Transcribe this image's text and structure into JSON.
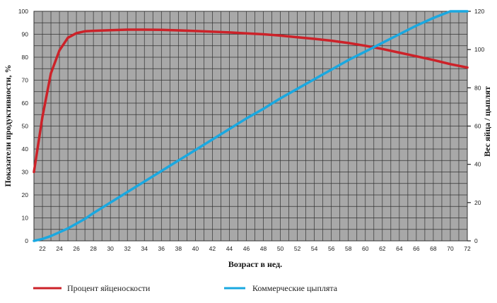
{
  "chart_data": {
    "type": "line",
    "xlabel": "Возраст в нед.",
    "ylabel_left": "Показатели продуктивности, %",
    "ylabel_right": "Вес яйца / цыплят",
    "xlim": [
      21,
      72
    ],
    "ylim_left": [
      0,
      100
    ],
    "ylim_right": [
      0,
      120
    ],
    "x_ticks": [
      22,
      24,
      26,
      28,
      30,
      32,
      34,
      36,
      38,
      40,
      42,
      44,
      46,
      48,
      50,
      52,
      54,
      56,
      58,
      60,
      62,
      64,
      66,
      68,
      70,
      72
    ],
    "y_ticks_left": [
      0,
      10,
      20,
      30,
      40,
      50,
      60,
      70,
      80,
      90,
      100
    ],
    "y_ticks_right": [
      0,
      20,
      40,
      60,
      80,
      100,
      120
    ],
    "grid": true,
    "background": "#a8a8a8",
    "legend_position": "bottom",
    "series": [
      {
        "name": "Процент яйценоскости",
        "axis": "left",
        "color": "#cc2229",
        "x": [
          21,
          22,
          23,
          24,
          25,
          26,
          27,
          28,
          30,
          32,
          34,
          36,
          38,
          40,
          42,
          44,
          46,
          48,
          50,
          52,
          54,
          56,
          58,
          60,
          62,
          64,
          66,
          68,
          70,
          72
        ],
        "values": [
          30,
          54,
          73,
          83,
          88.5,
          90.5,
          91.3,
          91.5,
          91.8,
          92,
          92,
          91.9,
          91.7,
          91.4,
          91.1,
          90.8,
          90.4,
          90,
          89.4,
          88.7,
          88,
          87.2,
          86.2,
          85,
          83.6,
          82,
          80.4,
          78.8,
          77,
          75.5
        ]
      },
      {
        "name": "Коммерческие цыплята",
        "axis": "right",
        "color": "#1aa8e0",
        "x": [
          21,
          22,
          23,
          24,
          25,
          26,
          27,
          28,
          30,
          32,
          34,
          36,
          38,
          40,
          42,
          44,
          46,
          48,
          50,
          52,
          54,
          56,
          58,
          60,
          62,
          64,
          66,
          68,
          70,
          72
        ],
        "values": [
          0,
          1,
          2.5,
          4.5,
          6.5,
          9,
          11.5,
          14.5,
          20,
          25.5,
          31,
          36.5,
          42,
          47.5,
          53,
          58.5,
          64,
          69,
          74.5,
          79.5,
          84.5,
          89.5,
          94.5,
          99,
          103.5,
          108,
          112.5,
          116.5,
          120.5,
          124
        ]
      }
    ]
  }
}
